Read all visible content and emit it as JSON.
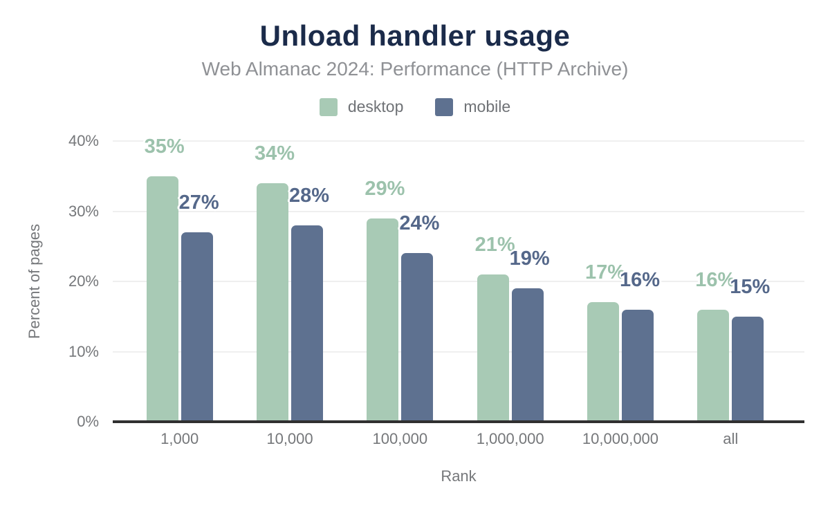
{
  "chart_data": {
    "type": "bar",
    "title": "Unload handler usage",
    "subtitle": "Web Almanac 2024: Performance (HTTP Archive)",
    "xlabel": "Rank",
    "ylabel": "Percent of pages",
    "categories": [
      "1,000",
      "10,000",
      "100,000",
      "1,000,000",
      "10,000,000",
      "all"
    ],
    "series": [
      {
        "name": "desktop",
        "values": [
          35,
          34,
          29,
          21,
          17,
          16
        ],
        "color": "#a8cab5",
        "label_color": "#9cc2ac"
      },
      {
        "name": "mobile",
        "values": [
          27,
          28,
          24,
          19,
          16,
          15
        ],
        "color": "#5e7190",
        "label_color": "#55688a"
      }
    ],
    "value_suffix": "%",
    "ylim": [
      0,
      40
    ],
    "y_ticks": [
      {
        "label": "40%",
        "value": 40
      },
      {
        "label": "30%",
        "value": 30
      },
      {
        "label": "20%",
        "value": 20
      },
      {
        "label": "10%",
        "value": 10
      },
      {
        "label": "0%",
        "value": 0
      }
    ],
    "grid": true,
    "legend_position": "top",
    "data_label_outline": "#ffffff"
  },
  "colors": {
    "background": "#ffffff",
    "title_text": "#1b2b4a",
    "subtitle_text": "#8f9195",
    "legend_text": "#6f7276",
    "axis_text": "#75777a",
    "gridline": "#efefef",
    "axis_line": "#303030"
  }
}
